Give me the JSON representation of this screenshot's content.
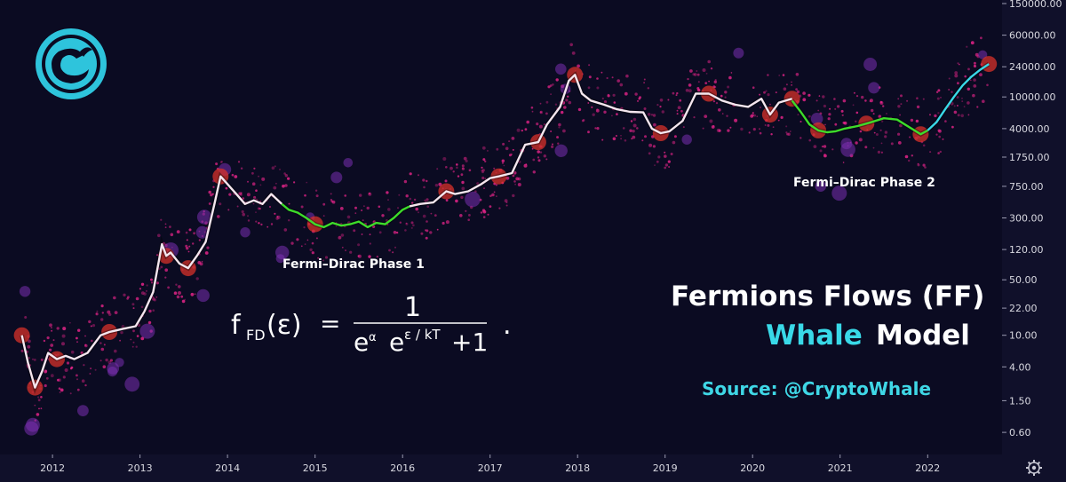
{
  "colors": {
    "background": "#0b0b22",
    "axis_panel": "#16162a",
    "price_line": "#f4e6ee",
    "phase_line": "#3ddc2a",
    "scatter": "#e8248a",
    "bubble": "#7a2fb0",
    "marker": "#d8322a",
    "accent_cyan": "#39d9e8"
  },
  "logo": {
    "icon": "whale-logo-icon"
  },
  "settings": {
    "icon": "gear-icon"
  },
  "chart_data": {
    "type": "line",
    "y_scale": "log",
    "ylim": [
      0.35,
      150000
    ],
    "xlim": [
      2011.4,
      2022.85
    ],
    "y_ticks": [
      "150000.00",
      "60000.00",
      "24000.00",
      "10000.00",
      "4000.00",
      "1750.00",
      "750.00",
      "300.00",
      "120.00",
      "50.00",
      "22.00",
      "10.00",
      "4.00",
      "1.50",
      "0.60"
    ],
    "y_tick_values": [
      150000,
      60000,
      24000,
      10000,
      4000,
      1750,
      750,
      300,
      120,
      50,
      22,
      10,
      4,
      1.5,
      0.6
    ],
    "x_ticks": [
      "2012",
      "2013",
      "2014",
      "2015",
      "2016",
      "2017",
      "2018",
      "2019",
      "2020",
      "2021",
      "2022"
    ],
    "x_tick_values": [
      2012,
      2013,
      2014,
      2015,
      2016,
      2017,
      2018,
      2019,
      2020,
      2021,
      2022
    ],
    "series": [
      {
        "x": [
          2011.65,
          2011.72,
          2011.8,
          2011.88,
          2011.95,
          2012.05,
          2012.15,
          2012.25,
          2012.4,
          2012.55,
          2012.65,
          2012.8,
          2012.95,
          2013.05,
          2013.15,
          2013.25,
          2013.3,
          2013.35,
          2013.45,
          2013.55,
          2013.65,
          2013.75,
          2013.85,
          2013.92,
          2014.0,
          2014.1,
          2014.2,
          2014.3,
          2014.4,
          2014.5,
          2014.62
        ],
        "y": [
          10,
          4.5,
          2.2,
          3.5,
          6,
          5,
          5.5,
          5,
          6,
          10,
          11,
          12,
          13,
          20,
          35,
          140,
          100,
          110,
          80,
          70,
          100,
          150,
          450,
          1000,
          800,
          600,
          450,
          500,
          450,
          600,
          450
        ]
      },
      {
        "x": [
          2014.62,
          2014.7,
          2014.8,
          2014.9,
          2015.0,
          2015.1,
          2015.2,
          2015.3,
          2015.4,
          2015.5,
          2015.6,
          2015.7,
          2015.8,
          2015.9,
          2016.0,
          2016.08
        ],
        "y": [
          450,
          380,
          350,
          300,
          250,
          230,
          260,
          240,
          250,
          270,
          230,
          260,
          250,
          300,
          380,
          420
        ]
      },
      {
        "x": [
          2016.08,
          2016.2,
          2016.35,
          2016.5,
          2016.6,
          2016.75,
          2016.9,
          2017.0,
          2017.1,
          2017.25,
          2017.4,
          2017.55,
          2017.65,
          2017.8,
          2017.9,
          2017.97,
          2018.05,
          2018.15,
          2018.3,
          2018.45,
          2018.6,
          2018.75,
          2018.85,
          2018.95,
          2019.05,
          2019.2,
          2019.35,
          2019.5,
          2019.65,
          2019.8,
          2019.95,
          2020.1,
          2020.2,
          2020.3,
          2020.45
        ],
        "y": [
          420,
          450,
          470,
          650,
          600,
          650,
          800,
          950,
          1000,
          1100,
          2500,
          2700,
          4500,
          7500,
          16000,
          19000,
          11000,
          9000,
          8000,
          7000,
          6500,
          6400,
          4000,
          3500,
          3700,
          5000,
          11000,
          11000,
          9000,
          8000,
          7500,
          9500,
          6000,
          8500,
          9500
        ]
      },
      {
        "x": [
          2020.45,
          2020.55,
          2020.65,
          2020.75,
          2020.85,
          2020.95,
          2021.05,
          2021.2,
          2021.35,
          2021.5,
          2021.65,
          2021.8,
          2021.92,
          2022.0
        ],
        "y": [
          9000,
          6500,
          4500,
          3800,
          3600,
          3700,
          4000,
          4300,
          4800,
          5400,
          5200,
          4100,
          3400,
          3800
        ]
      },
      {
        "x": [
          2022.0,
          2022.1,
          2022.2,
          2022.3,
          2022.4,
          2022.5,
          2022.6,
          2022.7
        ],
        "y": [
          3800,
          4800,
          7000,
          10000,
          14000,
          18000,
          22000,
          26000
        ]
      }
    ],
    "annotations": {
      "phase1_label": "Fermi–Dirac Phase 1",
      "phase2_label": "Fermi–Dirac Phase 2"
    },
    "title_line1": "Fermions Flows (FF)",
    "title_line2_accent": "Whale",
    "title_line2_rest": "Model",
    "source_text": "Source: @CryptoWhale"
  },
  "formula": {
    "f": "f",
    "sub": "FD",
    "arg": "(ε)",
    "equals": "=",
    "numerator": "1",
    "e1": "e",
    "alpha": "α",
    "e2": "e",
    "exp2": "ε / kT",
    "plus": "+1",
    "dot": "."
  }
}
